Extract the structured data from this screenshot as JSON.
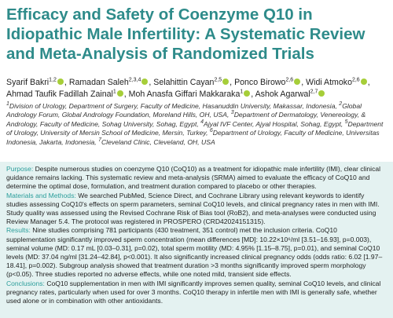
{
  "title": "Efficacy and Safety of Coenzyme Q10 in Idiopathic Male Infertility: A Systematic Review and Meta-Analysis of Randomized Trials",
  "authors": [
    {
      "name": "Syarif Bakri",
      "sup": "1,2",
      "sep": ","
    },
    {
      "name": "Ramadan Saleh",
      "sup": "2,3,4",
      "sep": ","
    },
    {
      "name": "Selahittin Cayan",
      "sup": "2,5",
      "sep": ","
    },
    {
      "name": "Ponco Birowo",
      "sup": "2,6",
      "sep": ","
    },
    {
      "name": "Widi Atmoko",
      "sup": "2,6",
      "sep": ","
    },
    {
      "name": "Ahmad Taufik Fadillah Zainal",
      "sup": "1",
      "sep": ","
    },
    {
      "name": "Moh Anasfa Giffari Makkaraka",
      "sup": "1",
      "sep": ","
    },
    {
      "name": "Ashok Agarwal",
      "sup": "2,7"
    }
  ],
  "affiliations": [
    {
      "num": "1",
      "text": "Division of Urology, Department of Surgery, Faculty of Medicine, Hasanuddin University, Makassar, Indonesia,"
    },
    {
      "num": "2",
      "text": "Global Andrology Forum, Global Andrology Foundation, Moreland Hills, OH, USA,"
    },
    {
      "num": "3",
      "text": "Department of Dermatology, Venereology, & Andrology, Faculty of Medicine, Sohag University, Sohag, Egypt,"
    },
    {
      "num": "4",
      "text": "Ajyal IVF Center, Ajyal Hospital, Sohag, Egypt,"
    },
    {
      "num": "5",
      "text": "Department of Urology, University of Mersin School of Medicine, Mersin, Turkey,"
    },
    {
      "num": "6",
      "text": "Department of Urology, Faculty of Medicine, Universitas Indonesia, Jakarta, Indonesia,"
    },
    {
      "num": "7",
      "text": "Cleveland Clinic, Cleveland, OH, USA"
    }
  ],
  "abstract": [
    {
      "label": "Purpose:",
      "text": "Despite numerous studies on coenzyme Q10 (CoQ10) as a treatment for idiopathic male infertility (IMI), clear clinical guidance remains lacking. This systematic review and meta-analysis (SRMA) aimed to evaluate the efficacy of CoQ10 and determine the optimal dose, formulation, and treatment duration compared to placebo or other therapies."
    },
    {
      "label": "Materials and Methods:",
      "text": "We searched PubMed, Science Direct, and Cochrane Library using relevant keywords to identify studies assessing CoQ10's effects on sperm parameters, seminal CoQ10 levels, and clinical pregnancy rates in men with IMI. Study quality was assessed using the Revised Cochrane Risk of Bias tool (RoB2), and meta-analyses were conducted using Review Manager 5.4. The protocol was registered in PROSPERO (CRD42024151315)."
    },
    {
      "label": "Results:",
      "text": "Nine studies comprising 781 participants (430 treatment, 351 control) met the inclusion criteria. CoQ10 supplementation significantly improved sperm concentration (mean differences [MD]: 10.22×10⁶/ml [3.51–16.93], p=0.003), seminal volume (MD: 0.17 mL [0.03–0.31], p=0.02), total sperm motility (MD: 4.95% [1.15–8.75], p=0.01), and seminal CoQ10 levels (MD: 37.04 ng/ml [31.24–42.84], p<0.001). It also significantly increased clinical pregnancy odds (odds ratio: 6.02 [1.97–18.41], p=0.002). Subgroup analysis showed that treatment duration >3 months significantly improved sperm morphology (p<0.05). Three studies reported no adverse effects, while one noted mild, transient side effects."
    },
    {
      "label": "Conclusions:",
      "text": "CoQ10 supplementation in men with IMI significantly improves semen quality, seminal CoQ10 levels, and clinical pregnancy rates, particularly when used for over 3 months. CoQ10 therapy in infertile men with IMI is generally safe, whether used alone or in combination with other antioxidants."
    }
  ]
}
